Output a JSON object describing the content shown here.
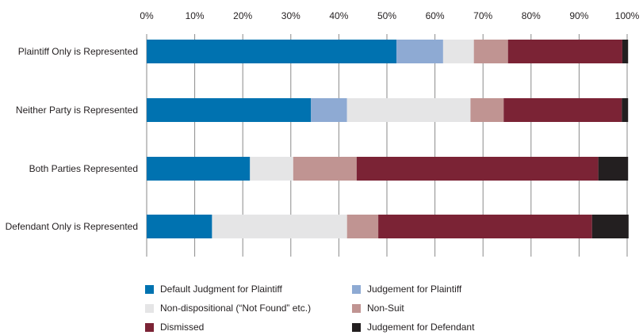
{
  "chart_data": {
    "type": "bar",
    "orientation": "horizontal",
    "stacked": true,
    "title": "",
    "xlabel": "",
    "ylabel": "",
    "xlim": [
      0,
      100
    ],
    "x_tick_labels": [
      "0%",
      "10%",
      "20%",
      "30%",
      "40%",
      "50%",
      "60%",
      "70%",
      "80%",
      "90%",
      "100%"
    ],
    "x_axis_position": "top",
    "grid": false,
    "legend_placement": "bottom",
    "categories": [
      "Plaintiff Only is Represented",
      "Neither Party is Represented",
      "Both Parties Represented",
      "Defendant Only is Represented"
    ],
    "series": [
      {
        "name": "Default Judgment for Plaintiff",
        "color": "#0072b0",
        "values": [
          52.0,
          34.2,
          21.5,
          13.6
        ]
      },
      {
        "name": "Judgement for Plaintiff",
        "color": "#8eaad3",
        "values": [
          9.7,
          7.5,
          0,
          0
        ]
      },
      {
        "name": "Non-dispositional (“Not Found” etc.)",
        "color": "#e5e5e6",
        "values": [
          6.4,
          25.7,
          9.0,
          28.1
        ]
      },
      {
        "name": "Non-Suit",
        "color": "#c09492",
        "values": [
          7.1,
          6.9,
          13.2,
          6.5
        ]
      },
      {
        "name": "Dismissed",
        "color": "#7b2335",
        "values": [
          23.8,
          24.6,
          50.3,
          44.5
        ]
      },
      {
        "name": "Judgement for Defendant",
        "color": "#231f20",
        "values": [
          1.2,
          1.3,
          6.2,
          7.6
        ]
      }
    ]
  }
}
